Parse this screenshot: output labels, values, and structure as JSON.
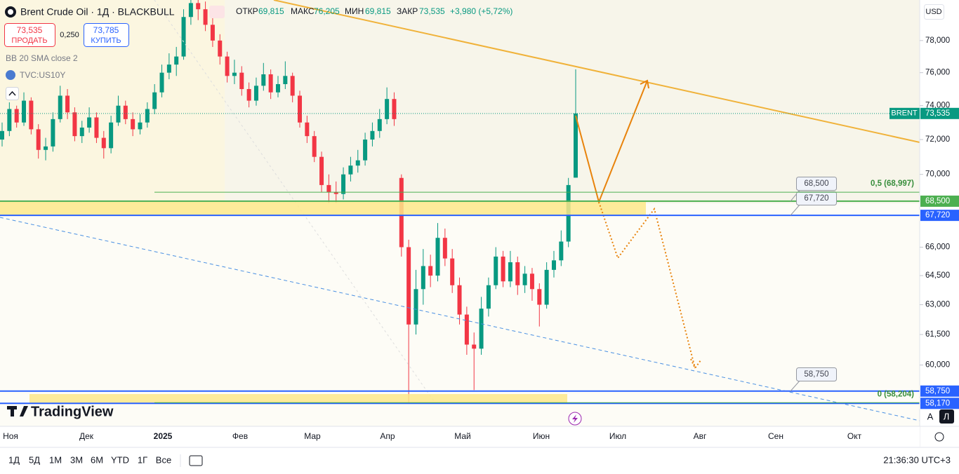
{
  "header": {
    "symbol": "Brent Crude Oil · 1Д · BLACKBULL",
    "open_label": "ОТКР",
    "open": "69,815",
    "high_label": "МАКС",
    "high": "76,205",
    "low_label": "МИН",
    "low": "69,815",
    "close_label": "ЗАКР",
    "close": "73,535",
    "change": "+3,980 (+5,72%)"
  },
  "trade": {
    "sell_price": "73,535",
    "sell_label": "ПРОДАТЬ",
    "spread": "0,250",
    "buy_price": "73,785",
    "buy_label": "КУПИТЬ"
  },
  "indicators": [
    "BB 20 SMA close 2",
    "TVC:US10Y"
  ],
  "currency": "USD",
  "logo": "TradingView",
  "chart_data": {
    "type": "candlestick",
    "log_scale": true,
    "ylim": [
      57.1,
      80.6
    ],
    "yticks": [
      {
        "value": 78,
        "label": "78,000"
      },
      {
        "value": 76,
        "label": "76,000"
      },
      {
        "value": 74,
        "label": "74,000"
      },
      {
        "value": 72,
        "label": "72,000"
      },
      {
        "value": 70,
        "label": "70,000"
      },
      {
        "value": 66,
        "label": "66,000"
      },
      {
        "value": 64.5,
        "label": "64,500"
      },
      {
        "value": 63,
        "label": "63,000"
      },
      {
        "value": 61.5,
        "label": "61,500"
      },
      {
        "value": 60,
        "label": "60,000"
      }
    ],
    "x_labels": [
      "Ноя",
      "Дек",
      "2025",
      "Фев",
      "Мар",
      "Апр",
      "Май",
      "Июн",
      "Июл",
      "Авг",
      "Сен",
      "Окт"
    ],
    "colors": {
      "up": "#089981",
      "down": "#f23645"
    },
    "candles": [
      [
        72.0,
        73.0,
        71.6,
        72.5
      ],
      [
        72.5,
        74.2,
        72.2,
        73.8
      ],
      [
        73.8,
        74.0,
        72.7,
        73.0
      ],
      [
        73.0,
        74.8,
        72.8,
        74.3
      ],
      [
        74.3,
        74.5,
        72.3,
        72.6
      ],
      [
        72.6,
        72.9,
        70.9,
        71.4
      ],
      [
        71.4,
        72.1,
        70.8,
        71.6
      ],
      [
        71.6,
        73.6,
        71.3,
        73.2
      ],
      [
        73.2,
        75.2,
        73.0,
        74.6
      ],
      [
        74.6,
        75.0,
        73.2,
        73.6
      ],
      [
        73.6,
        73.9,
        71.9,
        72.2
      ],
      [
        72.2,
        73.1,
        71.8,
        72.7
      ],
      [
        72.7,
        73.9,
        72.4,
        73.3
      ],
      [
        73.3,
        73.6,
        71.8,
        72.1
      ],
      [
        72.1,
        72.5,
        70.9,
        71.5
      ],
      [
        71.5,
        73.4,
        71.2,
        73.0
      ],
      [
        73.0,
        74.6,
        72.8,
        74.0
      ],
      [
        74.0,
        74.3,
        72.9,
        73.2
      ],
      [
        73.2,
        73.6,
        72.2,
        72.6
      ],
      [
        72.6,
        73.5,
        72.3,
        73.0
      ],
      [
        73.0,
        74.2,
        72.7,
        73.8
      ],
      [
        73.8,
        75.3,
        73.5,
        74.8
      ],
      [
        74.8,
        76.5,
        74.5,
        76.0
      ],
      [
        76.0,
        77.2,
        75.6,
        76.5
      ],
      [
        76.5,
        77.6,
        75.8,
        77.0
      ],
      [
        77.0,
        80.0,
        76.8,
        79.5
      ],
      [
        79.5,
        81.2,
        79.0,
        80.4
      ],
      [
        80.4,
        81.0,
        79.3,
        80.0
      ],
      [
        80.0,
        80.5,
        78.6,
        79.0
      ],
      [
        79.0,
        79.5,
        77.6,
        78.0
      ],
      [
        78.0,
        78.4,
        76.5,
        77.0
      ],
      [
        77.0,
        77.3,
        75.4,
        75.8
      ],
      [
        75.8,
        76.8,
        75.3,
        76.0
      ],
      [
        76.0,
        76.4,
        74.6,
        75.0
      ],
      [
        75.0,
        75.4,
        73.9,
        74.3
      ],
      [
        74.3,
        75.7,
        74.0,
        75.2
      ],
      [
        75.2,
        76.6,
        74.9,
        75.9
      ],
      [
        75.9,
        76.2,
        74.4,
        74.8
      ],
      [
        74.8,
        75.8,
        74.5,
        75.3
      ],
      [
        75.3,
        76.7,
        75.0,
        75.8
      ],
      [
        75.8,
        76.0,
        74.2,
        74.6
      ],
      [
        74.6,
        74.9,
        72.7,
        73.0
      ],
      [
        73.0,
        73.4,
        71.8,
        72.2
      ],
      [
        72.2,
        72.5,
        70.7,
        71.0
      ],
      [
        71.0,
        71.3,
        69.0,
        69.4
      ],
      [
        69.4,
        70.0,
        68.4,
        69.0
      ],
      [
        69.0,
        69.6,
        68.4,
        68.9
      ],
      [
        68.9,
        70.4,
        68.6,
        70.0
      ],
      [
        70.0,
        71.0,
        69.6,
        70.5
      ],
      [
        70.5,
        71.4,
        70.1,
        70.8
      ],
      [
        70.8,
        72.4,
        70.5,
        72.0
      ],
      [
        72.0,
        73.0,
        71.6,
        72.5
      ],
      [
        72.5,
        73.8,
        72.1,
        73.2
      ],
      [
        73.2,
        75.1,
        72.9,
        74.4
      ],
      [
        74.4,
        74.8,
        72.8,
        73.2
      ],
      [
        69.8,
        70.0,
        65.5,
        66.0
      ],
      [
        66.0,
        66.4,
        58.2,
        62.0
      ],
      [
        62.0,
        64.8,
        61.5,
        63.8
      ],
      [
        63.8,
        65.9,
        63.0,
        65.0
      ],
      [
        65.0,
        65.6,
        63.9,
        64.5
      ],
      [
        64.5,
        67.3,
        64.2,
        66.5
      ],
      [
        66.5,
        67.0,
        65.0,
        65.4
      ],
      [
        65.4,
        65.9,
        63.6,
        64.0
      ],
      [
        64.0,
        64.4,
        62.0,
        62.5
      ],
      [
        62.5,
        62.9,
        60.5,
        61.0
      ],
      [
        61.0,
        61.6,
        58.8,
        60.8
      ],
      [
        60.8,
        63.4,
        60.5,
        62.8
      ],
      [
        62.8,
        64.4,
        62.4,
        64.0
      ],
      [
        64.0,
        66.0,
        63.8,
        65.5
      ],
      [
        65.5,
        65.8,
        63.9,
        64.2
      ],
      [
        64.2,
        65.8,
        63.9,
        65.2
      ],
      [
        65.2,
        65.5,
        63.5,
        64.0
      ],
      [
        64.0,
        65.0,
        63.6,
        64.6
      ],
      [
        64.6,
        64.9,
        63.2,
        63.8
      ],
      [
        63.8,
        64.1,
        61.9,
        63.0
      ],
      [
        63.0,
        65.2,
        62.8,
        64.8
      ],
      [
        64.8,
        65.8,
        64.4,
        65.3
      ],
      [
        65.3,
        66.9,
        65.0,
        66.3
      ],
      [
        66.3,
        69.8,
        66.0,
        69.4
      ],
      [
        69.815,
        76.205,
        69.815,
        73.535
      ]
    ]
  },
  "price_badges": [
    {
      "name": "BRENT",
      "value": 73.535,
      "label": "73,535",
      "color": "#089981"
    },
    {
      "value": 68.5,
      "label": "68,500",
      "color": "#4caf50"
    },
    {
      "value": 67.72,
      "label": "67,720",
      "color": "#2962ff"
    },
    {
      "value": 58.75,
      "label": "58,750",
      "color": "#2962ff"
    },
    {
      "value": 58.17,
      "label": "58,170",
      "color": "#2962ff"
    }
  ],
  "callouts": [
    {
      "value": 68.5,
      "label": "68,500"
    },
    {
      "value": 67.72,
      "label": "67,720"
    },
    {
      "value": 58.75,
      "label": "58,750"
    }
  ],
  "fib_labels": [
    {
      "value": 68.997,
      "label": "0,5 (68,997)"
    },
    {
      "value": 58.204,
      "label": "0 (58,204)"
    }
  ],
  "toolbar": {
    "ranges": [
      "1Д",
      "5Д",
      "1М",
      "3М",
      "6М",
      "YTD",
      "1Г",
      "Все"
    ],
    "clock": "21:36:30 UTC+3",
    "scale_buttons": [
      "A",
      "Л"
    ]
  }
}
